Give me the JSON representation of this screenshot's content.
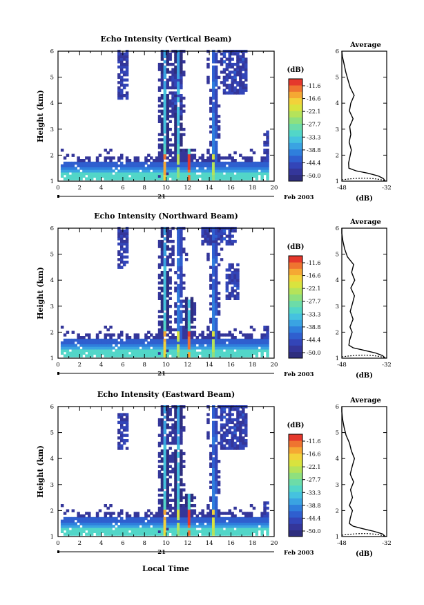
{
  "figure": {
    "xlabel": "Local Time",
    "ylabel": "Height (km)",
    "date_label": "21",
    "month_label": "Feb 2003",
    "colorbar_title": "(dB)",
    "avg_title": "Average",
    "avg_xlabel": "(dB)"
  },
  "colors": {
    "colormap": [
      "#2e2e7e",
      "#34369a",
      "#3345b8",
      "#2f5fcf",
      "#2f7fdc",
      "#3aa3e2",
      "#45c2df",
      "#52d6c8",
      "#6cdca8",
      "#8ee07e",
      "#b5e35a",
      "#d9e33e",
      "#f2d23a",
      "#f5a833",
      "#ef7430",
      "#e5382c"
    ]
  },
  "chart_data": [
    {
      "type": "heatmap",
      "title": "Echo Intensity (Vertical Beam)",
      "x_range": [
        0,
        20
      ],
      "x_ticks": [
        0,
        2,
        4,
        6,
        8,
        10,
        12,
        14,
        16,
        18,
        20
      ],
      "y_range": [
        1,
        6
      ],
      "y_ticks": [
        1,
        2,
        3,
        4,
        5,
        6
      ],
      "colorbar_ticks": [
        "-11.6",
        "-16.6",
        "-22.1",
        "-27.7",
        "-33.3",
        "-38.8",
        "-44.4",
        "-50.0"
      ],
      "colorbar_range_db": [
        -52,
        -10
      ],
      "plumes": [
        {
          "t": 9.75,
          "top": 6.0,
          "peak_db": -18
        },
        {
          "t": 11.0,
          "top": 6.0,
          "peak_db": -28
        },
        {
          "t": 12.0,
          "top": 2.2,
          "peak_db": -14
        },
        {
          "t": 14.35,
          "top": 6.0,
          "peak_db": -26
        }
      ],
      "clouds": [
        {
          "t0": 5.5,
          "t1": 6.3,
          "h0": 4.1,
          "h1": 6.0
        },
        {
          "t0": 15.2,
          "t1": 17.4,
          "h0": 4.3,
          "h1": 6.0
        },
        {
          "t0": 10.4,
          "t1": 11.3,
          "h0": 3.5,
          "h1": 5.0
        },
        {
          "t0": 18.9,
          "t1": 19.4,
          "h0": 1.4,
          "h1": 2.9
        }
      ],
      "average_profile": {
        "x_range_db": [
          -48,
          -32
        ],
        "x_ticks": [
          "-48",
          "-32"
        ],
        "y_range": [
          1,
          6
        ],
        "y_ticks": [
          1,
          2,
          3,
          4,
          5,
          6
        ],
        "heights": [
          1.0,
          1.1,
          1.2,
          1.3,
          1.4,
          1.5,
          1.7,
          2.0,
          2.2,
          2.5,
          2.8,
          3.1,
          3.4,
          3.7,
          4.0,
          4.3,
          4.6,
          4.9,
          5.2,
          5.5,
          5.8,
          6.0
        ],
        "values_db": [
          -32.5,
          -33.2,
          -35.0,
          -38.5,
          -43.0,
          -45.5,
          -45.6,
          -45.0,
          -44.6,
          -45.4,
          -44.8,
          -45.2,
          -44.0,
          -45.3,
          -44.8,
          -43.6,
          -45.0,
          -45.8,
          -46.6,
          -47.2,
          -47.8,
          -48.0
        ]
      }
    },
    {
      "type": "heatmap",
      "title": "Echo Intensity (Northward Beam)",
      "x_range": [
        0,
        20
      ],
      "x_ticks": [
        0,
        2,
        4,
        6,
        8,
        10,
        12,
        14,
        16,
        18,
        20
      ],
      "y_range": [
        1,
        6
      ],
      "y_ticks": [
        1,
        2,
        3,
        4,
        5,
        6
      ],
      "colorbar_ticks": [
        "-11.6",
        "-16.6",
        "-22.1",
        "-27.7",
        "-33.3",
        "-38.8",
        "-44.4",
        "-50.0"
      ],
      "colorbar_range_db": [
        -52,
        -10
      ],
      "plumes": [
        {
          "t": 9.75,
          "top": 6.0,
          "peak_db": -20
        },
        {
          "t": 11.1,
          "top": 6.0,
          "peak_db": -26
        },
        {
          "t": 12.0,
          "top": 3.3,
          "peak_db": -16
        },
        {
          "t": 14.35,
          "top": 6.0,
          "peak_db": -26
        }
      ],
      "clouds": [
        {
          "t0": 5.5,
          "t1": 6.3,
          "h0": 4.4,
          "h1": 6.0
        },
        {
          "t0": 13.2,
          "t1": 16.4,
          "h0": 5.3,
          "h1": 6.0
        },
        {
          "t0": 15.3,
          "t1": 16.6,
          "h0": 3.2,
          "h1": 4.6
        },
        {
          "t0": 18.9,
          "t1": 19.4,
          "h0": 1.5,
          "h1": 2.2
        }
      ],
      "average_profile": {
        "x_range_db": [
          -48,
          -32
        ],
        "x_ticks": [
          "-48",
          "-32"
        ],
        "y_range": [
          1,
          6
        ],
        "y_ticks": [
          1,
          2,
          3,
          4,
          5,
          6
        ],
        "heights": [
          1.0,
          1.1,
          1.2,
          1.3,
          1.4,
          1.5,
          1.7,
          2.0,
          2.2,
          2.5,
          2.8,
          3.1,
          3.4,
          3.7,
          4.0,
          4.3,
          4.6,
          4.9,
          5.2,
          5.5,
          5.8,
          6.0
        ],
        "values_db": [
          -32.5,
          -33.5,
          -36.0,
          -40.0,
          -44.0,
          -45.5,
          -45.2,
          -44.3,
          -45.1,
          -44.0,
          -45.0,
          -44.2,
          -43.5,
          -44.8,
          -43.4,
          -44.5,
          -43.8,
          -46.0,
          -47.0,
          -47.6,
          -48.0,
          -48.0
        ]
      }
    },
    {
      "type": "heatmap",
      "title": "Echo Intensity (Eastward Beam)",
      "x_range": [
        0,
        20
      ],
      "x_ticks": [
        0,
        2,
        4,
        6,
        8,
        10,
        12,
        14,
        16,
        18,
        20
      ],
      "y_range": [
        1,
        6
      ],
      "y_ticks": [
        1,
        2,
        3,
        4,
        5,
        6
      ],
      "colorbar_ticks": [
        "-11.6",
        "-16.6",
        "-22.1",
        "-27.7",
        "-33.3",
        "-38.8",
        "-44.4",
        "-50.0"
      ],
      "colorbar_range_db": [
        -52,
        -10
      ],
      "plumes": [
        {
          "t": 9.75,
          "top": 6.0,
          "peak_db": -20
        },
        {
          "t": 11.0,
          "top": 6.0,
          "peak_db": -26
        },
        {
          "t": 12.0,
          "top": 2.6,
          "peak_db": -14
        },
        {
          "t": 14.35,
          "top": 6.0,
          "peak_db": -24
        }
      ],
      "clouds": [
        {
          "t0": 5.5,
          "t1": 6.3,
          "h0": 4.3,
          "h1": 5.7
        },
        {
          "t0": 15.0,
          "t1": 17.4,
          "h0": 4.3,
          "h1": 6.0
        },
        {
          "t0": 18.9,
          "t1": 19.4,
          "h0": 1.5,
          "h1": 2.3
        }
      ],
      "average_profile": {
        "x_range_db": [
          -48,
          -32
        ],
        "x_ticks": [
          "-48",
          "-32"
        ],
        "y_range": [
          1,
          6
        ],
        "y_ticks": [
          1,
          2,
          3,
          4,
          5,
          6
        ],
        "heights": [
          1.0,
          1.1,
          1.2,
          1.3,
          1.4,
          1.5,
          1.7,
          2.0,
          2.2,
          2.5,
          2.8,
          3.1,
          3.4,
          3.7,
          4.0,
          4.3,
          4.6,
          4.9,
          5.2,
          5.5,
          5.8,
          6.0
        ],
        "values_db": [
          -32.5,
          -33.5,
          -36.5,
          -40.5,
          -44.0,
          -45.3,
          -45.0,
          -44.2,
          -45.3,
          -44.2,
          -44.9,
          -43.8,
          -45.0,
          -44.3,
          -43.5,
          -44.6,
          -45.3,
          -46.5,
          -47.2,
          -47.7,
          -48.0,
          -48.0
        ]
      }
    }
  ]
}
